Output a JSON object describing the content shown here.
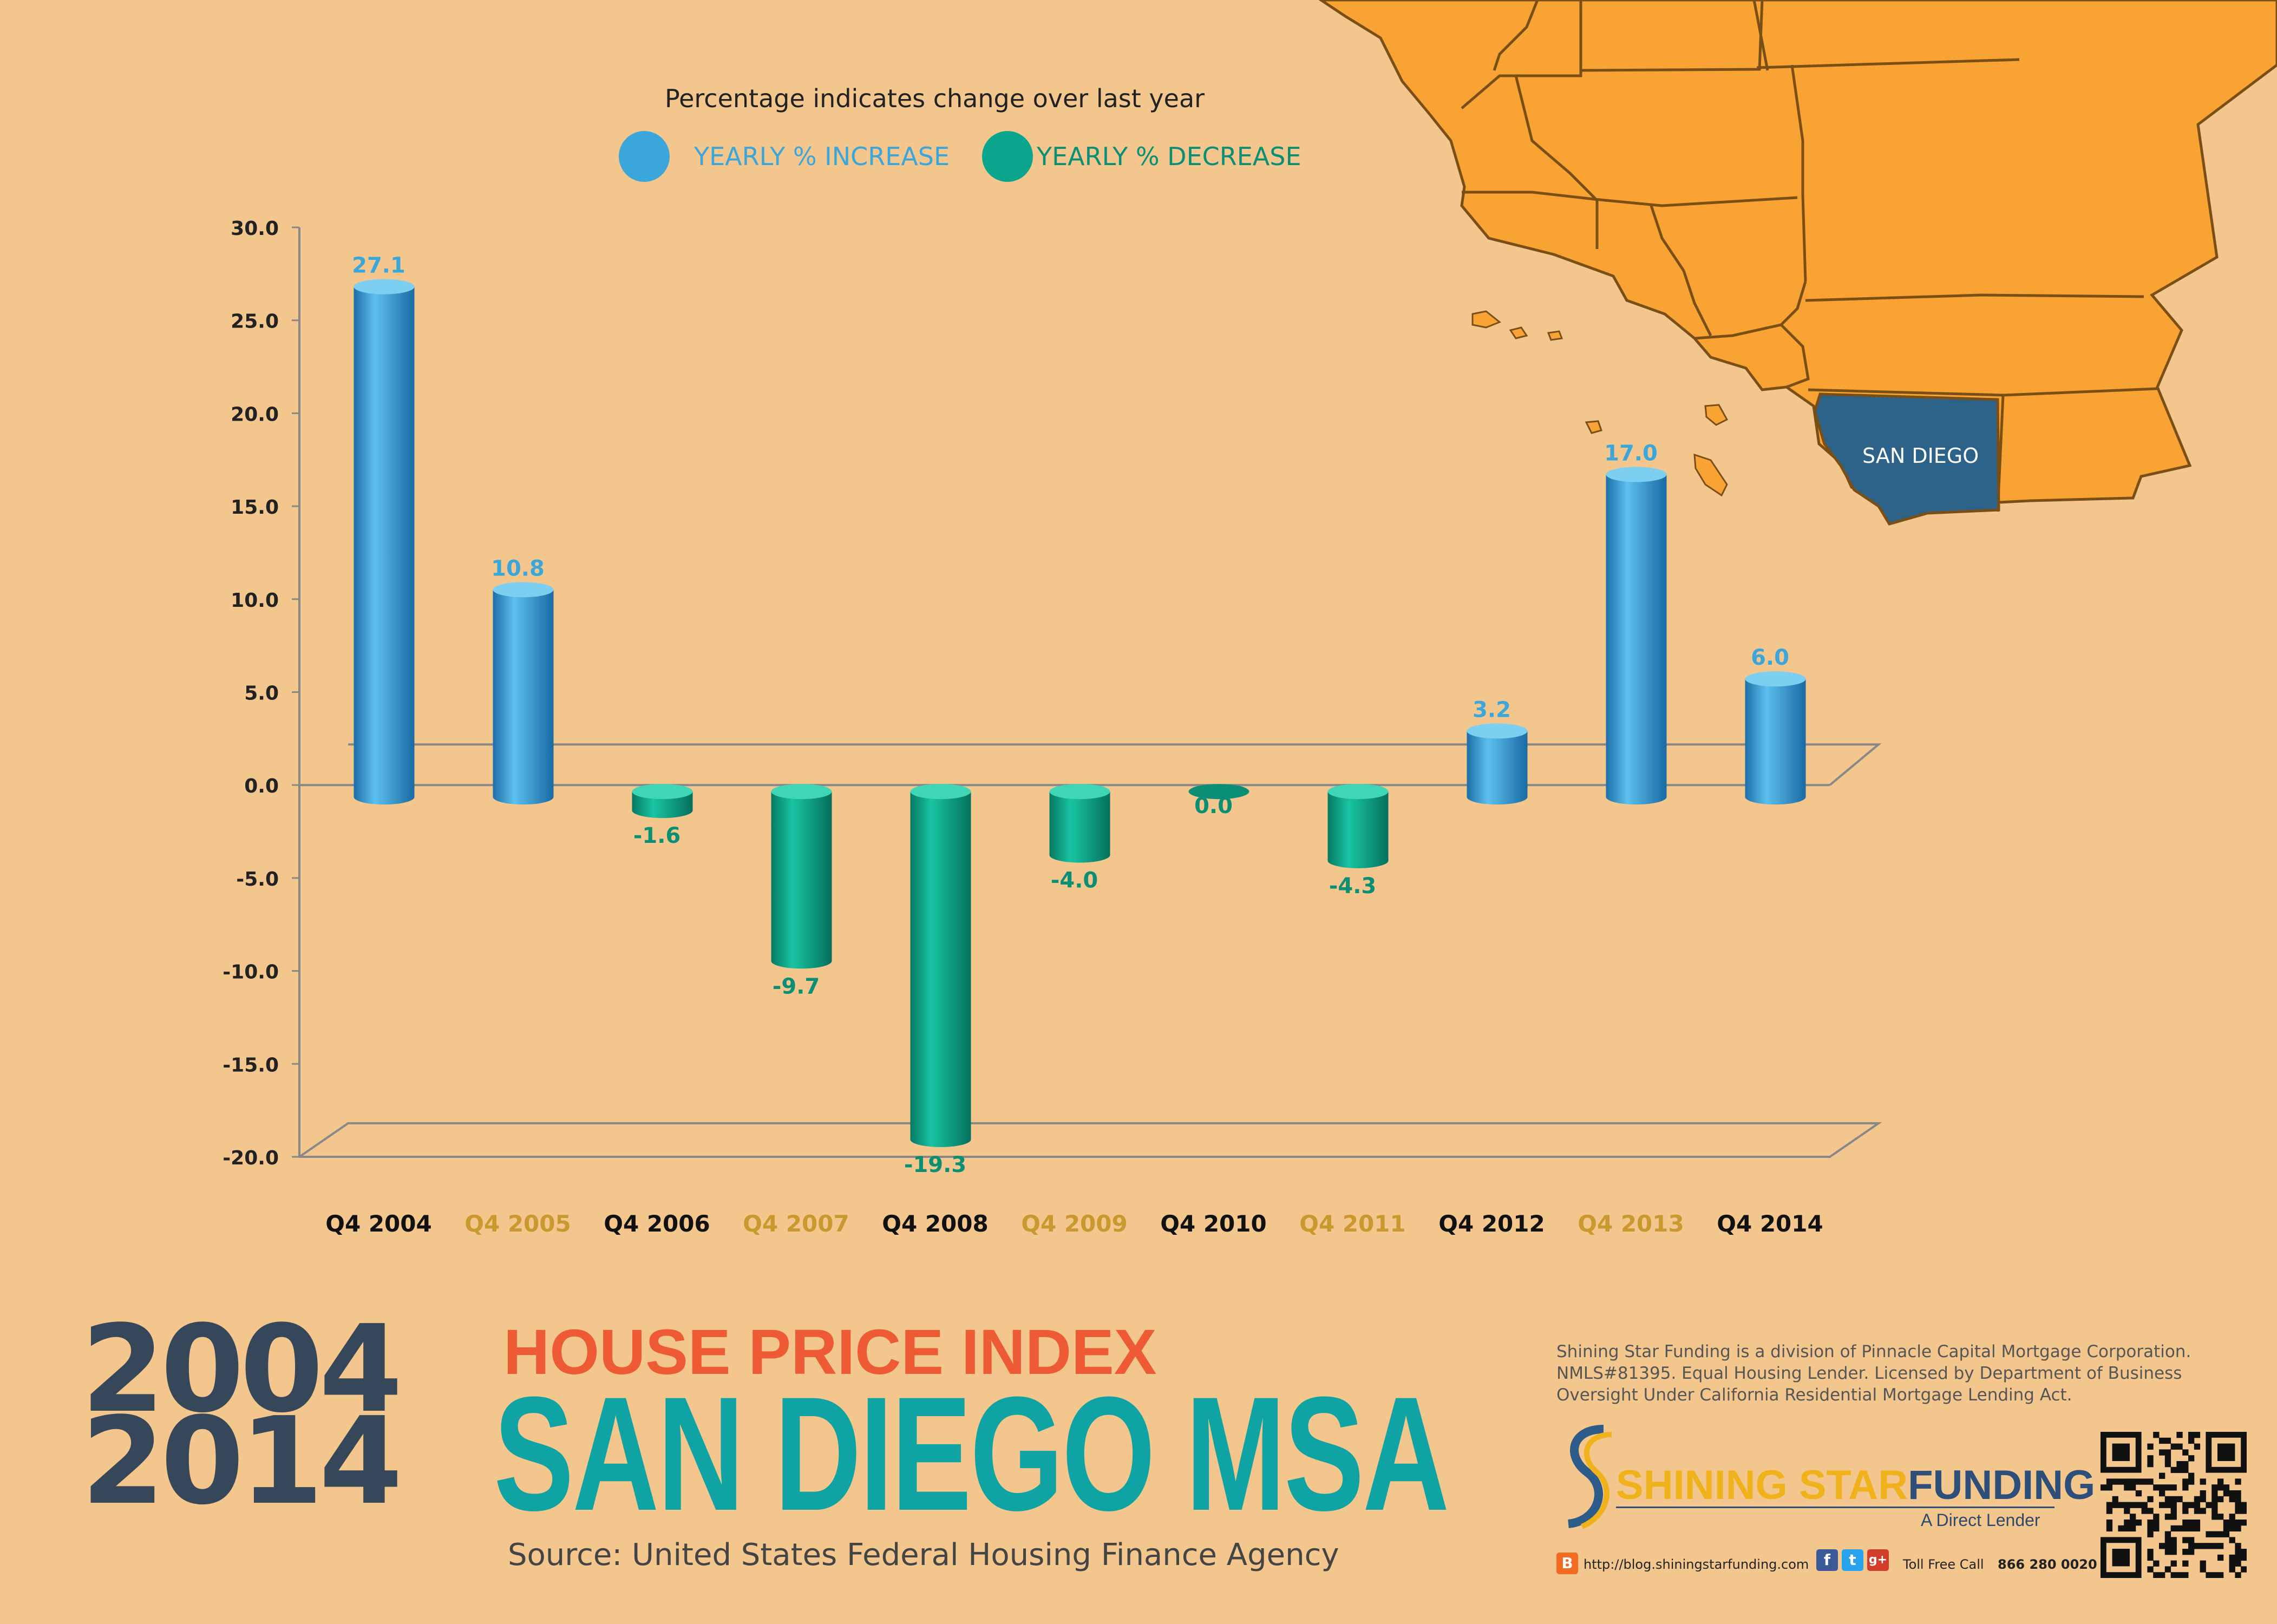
{
  "header": {
    "subtitle": "Percentage indicates change over last year"
  },
  "legend": {
    "increase_label": "YEARLY % INCREASE",
    "decrease_label": "YEARLY % DECREASE",
    "increase_color": "#3aa6da",
    "decrease_color": "#0aa58c"
  },
  "map": {
    "region_label": "SAN DIEGO",
    "land_color": "#f8a334",
    "highlight_color": "#2d6289"
  },
  "chart_data": {
    "type": "bar",
    "categories": [
      "Q4 2004",
      "Q4 2005",
      "Q4 2006",
      "Q4 2007",
      "Q4 2008",
      "Q4 2009",
      "Q4 2010",
      "Q4 2011",
      "Q4 2012",
      "Q4 2013",
      "Q4 2014"
    ],
    "values": [
      27.1,
      10.8,
      -1.6,
      -9.7,
      -19.3,
      -4.0,
      0.0,
      -4.3,
      3.2,
      17.0,
      6.0
    ],
    "value_labels": [
      "27.1",
      "10.8",
      "-1.6",
      "-9.7",
      "-19.3",
      "-4.0",
      "0.0",
      "-4.3",
      "3.2",
      "17.0",
      "6.0"
    ],
    "yticks": [
      "30.0",
      "25.0",
      "20.0",
      "15.0",
      "10.0",
      "5.0",
      "0.0",
      "-5.0",
      "-10.0",
      "-15.0",
      "-20.0"
    ],
    "ylim": [
      -20,
      30
    ],
    "category_colors": [
      "#111111",
      "#c9982e",
      "#111111",
      "#c9982e",
      "#111111",
      "#c9982e",
      "#111111",
      "#c9982e",
      "#111111",
      "#c9982e",
      "#111111"
    ],
    "title": "",
    "xlabel": "",
    "ylabel": "",
    "grid": false
  },
  "title_block": {
    "year_start": "2004",
    "year_end": "2014",
    "index_title": "HOUSE PRICE INDEX",
    "region_title": "SAN DIEGO MSA",
    "source": "Source:  United States Federal Housing Finance Agency"
  },
  "footer": {
    "disclaimer_lines": [
      "Shining Star Funding is a division of Pinnacle Capital Mortgage Corporation.",
      "NMLS#81395.  Equal Housing Lender. Licensed by Department of Business",
      "Oversight Under California Residential Mortgage Lending Act."
    ],
    "brand_word1": "SHINING",
    "brand_word2": "STAR",
    "brand_word3": "FUNDING",
    "tagline": "A Direct Lender",
    "blog_url": "http://blog.shiningstarfunding.com",
    "toll_free_label": "Toll Free Call",
    "phone": "866 280 0020",
    "icons": [
      "blogger-icon",
      "facebook-icon",
      "twitter-icon",
      "google-plus-icon",
      "qr-code-icon"
    ]
  }
}
